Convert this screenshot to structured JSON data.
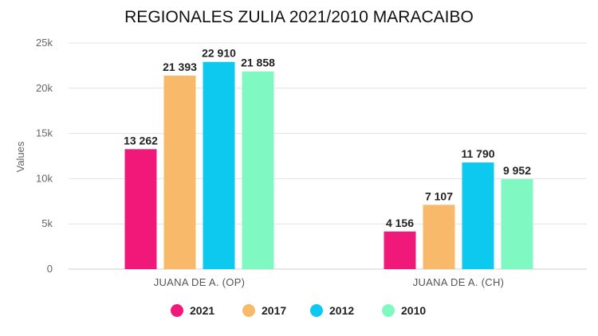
{
  "chart_data": {
    "type": "bar",
    "title": "REGIONALES ZULIA 2021/2010 MARACAIBO",
    "xlabel": "",
    "ylabel": "Values",
    "ylim": [
      0,
      25000
    ],
    "yticks": [
      0,
      5000,
      10000,
      15000,
      20000,
      25000
    ],
    "ytick_labels": [
      "0",
      "5k",
      "10k",
      "15k",
      "20k",
      "25k"
    ],
    "categories": [
      "JUANA DE A. (OP)",
      "JUANA DE A. (CH)"
    ],
    "series": [
      {
        "name": "2021",
        "color": "#f0197a",
        "values": [
          13262,
          4156
        ],
        "labels": [
          "13 262",
          "4 156"
        ]
      },
      {
        "name": "2017",
        "color": "#f9b96a",
        "values": [
          21393,
          7107
        ],
        "labels": [
          "21 393",
          "7 107"
        ]
      },
      {
        "name": "2012",
        "color": "#0dc8ef",
        "values": [
          22910,
          11790
        ],
        "labels": [
          "22 910",
          "11 790"
        ]
      },
      {
        "name": "2010",
        "color": "#80f8c2",
        "values": [
          21858,
          9952
        ],
        "labels": [
          "21 858",
          "9 952"
        ]
      }
    ],
    "grid": true,
    "legend_position": "bottom"
  }
}
